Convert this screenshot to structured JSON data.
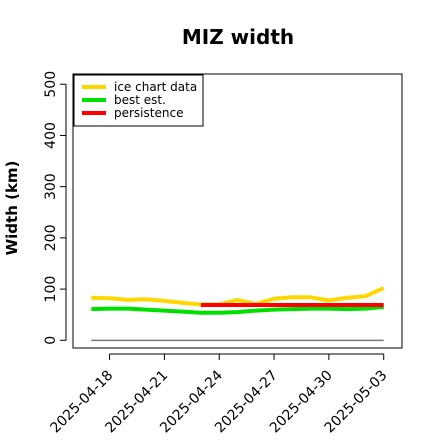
{
  "chart_data": {
    "type": "line",
    "title": "MIZ width",
    "xlabel": "",
    "ylabel": "Width (km)",
    "ylim": [
      -15,
      520
    ],
    "xlim": [
      "2025-04-16",
      "2025-05-04"
    ],
    "y_ticks": [
      0,
      100,
      200,
      300,
      400,
      500
    ],
    "x_ticks": [
      "2025-04-18",
      "2025-04-21",
      "2025-04-24",
      "2025-04-27",
      "2025-04-30",
      "2025-05-03"
    ],
    "grid": false,
    "legend_position": "top-left",
    "reference_line": {
      "y": 0,
      "x": [
        "2025-04-17",
        "2025-05-03"
      ],
      "color": "#777777"
    },
    "series": [
      {
        "name": "ice chart data",
        "color": "#FFD700",
        "x": [
          "2025-04-17",
          "2025-04-18",
          "2025-04-19",
          "2025-04-20",
          "2025-04-21",
          "2025-04-22",
          "2025-04-23",
          "2025-04-24",
          "2025-04-25",
          "2025-04-26",
          "2025-04-27",
          "2025-04-28",
          "2025-04-29",
          "2025-04-30",
          "2025-05-01",
          "2025-05-02",
          "2025-05-03"
        ],
        "values": [
          83,
          82,
          79,
          80,
          77,
          73,
          70,
          70,
          79,
          71,
          81,
          84,
          84,
          78,
          83,
          86,
          102
        ]
      },
      {
        "name": "best est.",
        "color": "#00E000",
        "x": [
          "2025-04-17",
          "2025-04-18",
          "2025-04-19",
          "2025-04-20",
          "2025-04-21",
          "2025-04-22",
          "2025-04-23",
          "2025-04-24",
          "2025-04-25",
          "2025-04-26",
          "2025-04-27",
          "2025-04-28",
          "2025-04-29",
          "2025-04-30",
          "2025-05-01",
          "2025-05-02",
          "2025-05-03"
        ],
        "values": [
          61,
          62,
          62,
          60,
          58,
          56,
          54,
          54,
          55,
          58,
          60,
          61,
          62,
          62,
          61,
          62,
          65
        ]
      },
      {
        "name": "persistence",
        "color": "#FF0000",
        "x": [
          "2025-04-23",
          "2025-04-24",
          "2025-04-25",
          "2025-04-26",
          "2025-04-27",
          "2025-04-28",
          "2025-04-29",
          "2025-04-30",
          "2025-05-01",
          "2025-05-02",
          "2025-05-03"
        ],
        "values": [
          69,
          69,
          69,
          69,
          69,
          69,
          69,
          69,
          69,
          69,
          69
        ]
      }
    ]
  }
}
